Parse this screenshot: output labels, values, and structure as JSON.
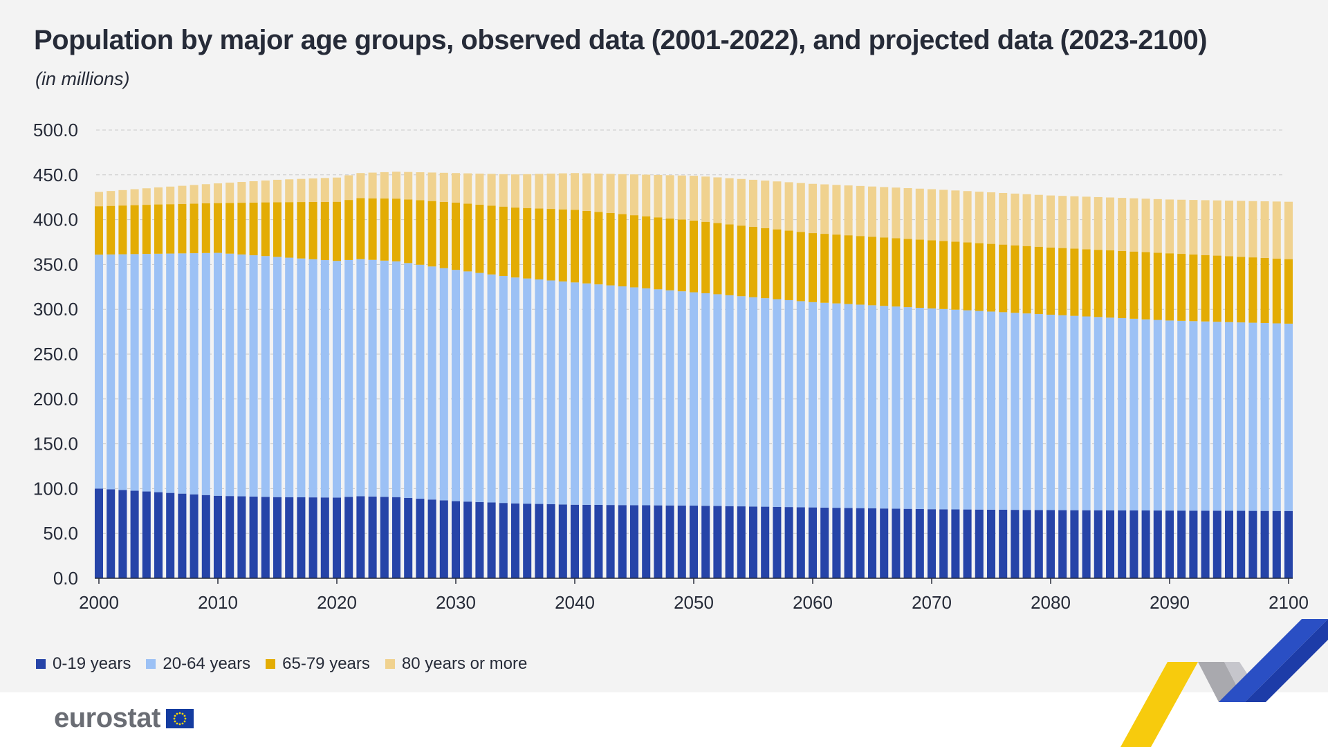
{
  "title": "Population by major age groups, observed data (2001-2022), and projected data (2023-2100)",
  "subtitle": "(in millions)",
  "logo": "eurostat",
  "legend": [
    {
      "label": "0-19 years",
      "color": "#2644a8"
    },
    {
      "label": "20-64 years",
      "color": "#9cc1f5"
    },
    {
      "label": "65-79 years",
      "color": "#e3ac04"
    },
    {
      "label": "80 years or more",
      "color": "#f0d28f"
    }
  ],
  "chart_data": {
    "type": "bar",
    "stacked": true,
    "title": "Population by major age groups, observed data (2001-2022), and projected data (2023-2100)",
    "ylabel": "(in millions)",
    "ylim": [
      0,
      500
    ],
    "yticks": [
      "0.0",
      "50.0",
      "100.0",
      "150.0",
      "200.0",
      "250.0",
      "300.0",
      "350.0",
      "400.0",
      "450.0",
      "500.0"
    ],
    "xticks": [
      "2000",
      "2010",
      "2020",
      "2030",
      "2040",
      "2050",
      "2060",
      "2070",
      "2080",
      "2090",
      "2100"
    ],
    "grid": "horizontal-dashed",
    "legend_position": "bottom",
    "x_range": [
      2000,
      2100
    ],
    "series": [
      {
        "name": "0-19 years",
        "color": "#2644a8",
        "anchors": [
          [
            2000,
            100
          ],
          [
            2005,
            96
          ],
          [
            2010,
            92
          ],
          [
            2015,
            90.5
          ],
          [
            2020,
            90
          ],
          [
            2022,
            91.5
          ],
          [
            2025,
            90.5
          ],
          [
            2030,
            86
          ],
          [
            2035,
            83.5
          ],
          [
            2040,
            82
          ],
          [
            2050,
            81
          ],
          [
            2060,
            79
          ],
          [
            2070,
            77
          ],
          [
            2080,
            76
          ],
          [
            2090,
            75.5
          ],
          [
            2100,
            75
          ]
        ]
      },
      {
        "name": "20-64 years",
        "color": "#9cc1f5",
        "anchors": [
          [
            2000,
            261
          ],
          [
            2005,
            266
          ],
          [
            2010,
            271
          ],
          [
            2015,
            268
          ],
          [
            2020,
            264
          ],
          [
            2022,
            264.5
          ],
          [
            2025,
            263
          ],
          [
            2030,
            258
          ],
          [
            2035,
            252
          ],
          [
            2040,
            248
          ],
          [
            2050,
            238
          ],
          [
            2060,
            229
          ],
          [
            2070,
            224
          ],
          [
            2080,
            218
          ],
          [
            2090,
            212
          ],
          [
            2100,
            209
          ]
        ]
      },
      {
        "name": "65-79 years",
        "color": "#e3ac04",
        "anchors": [
          [
            2000,
            54
          ],
          [
            2005,
            55
          ],
          [
            2010,
            55.5
          ],
          [
            2015,
            61
          ],
          [
            2020,
            66
          ],
          [
            2022,
            68
          ],
          [
            2025,
            70
          ],
          [
            2030,
            75
          ],
          [
            2035,
            78
          ],
          [
            2040,
            81
          ],
          [
            2050,
            80
          ],
          [
            2060,
            77
          ],
          [
            2070,
            76
          ],
          [
            2080,
            75
          ],
          [
            2090,
            75
          ],
          [
            2100,
            72
          ]
        ]
      },
      {
        "name": "80 years or more",
        "color": "#f0d28f",
        "anchors": [
          [
            2000,
            16
          ],
          [
            2005,
            19
          ],
          [
            2010,
            22
          ],
          [
            2015,
            25
          ],
          [
            2020,
            27
          ],
          [
            2022,
            28
          ],
          [
            2025,
            30
          ],
          [
            2030,
            33
          ],
          [
            2035,
            37
          ],
          [
            2040,
            41
          ],
          [
            2050,
            50
          ],
          [
            2060,
            55
          ],
          [
            2070,
            57
          ],
          [
            2080,
            58
          ],
          [
            2090,
            60
          ],
          [
            2100,
            64
          ]
        ]
      }
    ]
  }
}
